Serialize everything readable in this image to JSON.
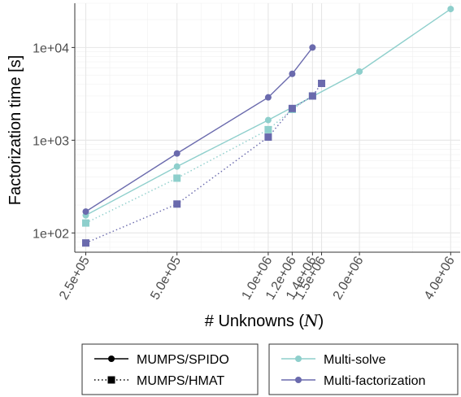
{
  "chart_data": {
    "type": "line",
    "x_scale": "log",
    "y_scale": "log",
    "xlabel": "# Unknowns (",
    "xlabel_var": "N",
    "xlabel_close": ")",
    "ylabel": "Factorization time [s]",
    "xlim": [
      230000,
      4300000
    ],
    "ylim": [
      62,
      30000
    ],
    "grid": true,
    "x_ticks": [
      {
        "value": 250000,
        "label": "2.5e+05"
      },
      {
        "value": 500000,
        "label": "5.0e+05"
      },
      {
        "value": 1000000,
        "label": "1.0e+06"
      },
      {
        "value": 1200000,
        "label": "1.2e+06"
      },
      {
        "value": 1400000,
        "label": "1.4e+06"
      },
      {
        "value": 1500000,
        "label": "1.5e+06"
      },
      {
        "value": 2000000,
        "label": "2.0e+06"
      },
      {
        "value": 4000000,
        "label": "4.0e+06"
      }
    ],
    "y_ticks": [
      {
        "value": 100,
        "label": "1e+02"
      },
      {
        "value": 1000,
        "label": "1e+03"
      },
      {
        "value": 10000,
        "label": "1e+04"
      }
    ],
    "series": [
      {
        "solver": "MUMPS/SPIDO",
        "method": "Multi-solve",
        "color": "#8ecfcc",
        "line": "solid",
        "marker": "circle",
        "x": [
          250000,
          500000,
          1000000,
          2000000,
          4000000
        ],
        "y": [
          155,
          520,
          1650,
          5500,
          26000
        ]
      },
      {
        "solver": "MUMPS/SPIDO",
        "method": "Multi-factorization",
        "color": "#6a6aad",
        "line": "solid",
        "marker": "circle",
        "x": [
          250000,
          500000,
          1000000,
          1200000,
          1400000
        ],
        "y": [
          170,
          720,
          2900,
          5200,
          10000
        ]
      },
      {
        "solver": "MUMPS/HMAT",
        "method": "Multi-solve",
        "color": "#8ecfcc",
        "line": "dotted",
        "marker": "square",
        "x": [
          250000,
          500000,
          1000000,
          1200000,
          1400000
        ],
        "y": [
          128,
          390,
          1300,
          2150,
          3000
        ]
      },
      {
        "solver": "MUMPS/HMAT",
        "method": "Multi-factorization",
        "color": "#6a6aad",
        "line": "dotted",
        "marker": "square",
        "x": [
          250000,
          500000,
          1000000,
          1200000,
          1400000,
          1500000
        ],
        "y": [
          78,
          205,
          1080,
          2200,
          3000,
          4100
        ]
      }
    ],
    "legend_solver": [
      {
        "label": "MUMPS/SPIDO",
        "line": "solid",
        "marker": "circle"
      },
      {
        "label": "MUMPS/HMAT",
        "line": "dotted",
        "marker": "square"
      }
    ],
    "legend_method": [
      {
        "label": "Multi-solve",
        "color": "#8ecfcc"
      },
      {
        "label": "Multi-factorization",
        "color": "#6a6aad"
      }
    ],
    "legend_placement": "bottom"
  }
}
